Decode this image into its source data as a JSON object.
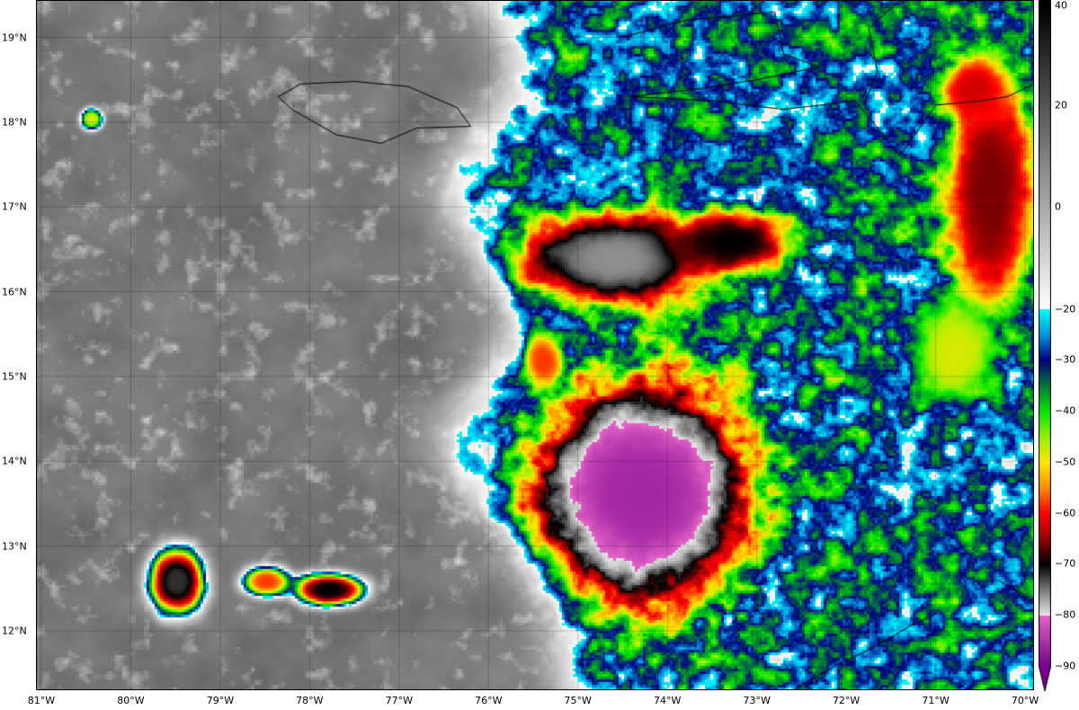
{
  "map": {
    "extent": {
      "lon_min": -81.06,
      "lon_max": -69.9,
      "lat_min": 11.3,
      "lat_max": 19.44
    },
    "lon_ticks": [
      {
        "value": -81,
        "label": "81°W"
      },
      {
        "value": -80,
        "label": "80°W"
      },
      {
        "value": -79,
        "label": "79°W"
      },
      {
        "value": -78,
        "label": "78°W"
      },
      {
        "value": -77,
        "label": "77°W"
      },
      {
        "value": -76,
        "label": "76°W"
      },
      {
        "value": -75,
        "label": "75°W"
      },
      {
        "value": -74,
        "label": "74°W"
      },
      {
        "value": -73,
        "label": "73°W"
      },
      {
        "value": -72,
        "label": "72°W"
      },
      {
        "value": -71,
        "label": "71°W"
      },
      {
        "value": -70,
        "label": "70°W"
      }
    ],
    "lat_ticks": [
      {
        "value": 19,
        "label": "19°N"
      },
      {
        "value": 18,
        "label": "18°N"
      },
      {
        "value": 17,
        "label": "17°N"
      },
      {
        "value": 16,
        "label": "16°N"
      },
      {
        "value": 15,
        "label": "15°N"
      },
      {
        "value": 14,
        "label": "14°N"
      },
      {
        "value": 13,
        "label": "13°N"
      },
      {
        "value": 12,
        "label": "12°N"
      }
    ],
    "gridlines": true
  },
  "colorbar": {
    "range": [
      -90,
      40
    ],
    "extend": "min",
    "ticks": [
      {
        "value": 40,
        "label": "40"
      },
      {
        "value": 20,
        "label": "20"
      },
      {
        "value": 0,
        "label": "0"
      },
      {
        "value": -20,
        "label": "−20"
      },
      {
        "value": -30,
        "label": "−30"
      },
      {
        "value": -40,
        "label": "−40"
      },
      {
        "value": -50,
        "label": "−50"
      },
      {
        "value": -60,
        "label": "−60"
      },
      {
        "value": -70,
        "label": "−70"
      },
      {
        "value": -80,
        "label": "−80"
      },
      {
        "value": -90,
        "label": "−90"
      }
    ],
    "colormap": [
      [
        40,
        "#000000"
      ],
      [
        -19.99,
        "#ffffff"
      ],
      [
        -20,
        "#00ffff"
      ],
      [
        -25,
        "#0096dc"
      ],
      [
        -30,
        "#000080"
      ],
      [
        -35,
        "#00783c"
      ],
      [
        -40,
        "#00e600"
      ],
      [
        -45,
        "#96f000"
      ],
      [
        -50,
        "#ffe600"
      ],
      [
        -55,
        "#ff8c00"
      ],
      [
        -60,
        "#ff0000"
      ],
      [
        -65,
        "#960000"
      ],
      [
        -70,
        "#000000"
      ],
      [
        -75,
        "#787878"
      ],
      [
        -79.99,
        "#e6e6e6"
      ],
      [
        -80,
        "#e664c8"
      ],
      [
        -90,
        "#78008c"
      ]
    ]
  }
}
